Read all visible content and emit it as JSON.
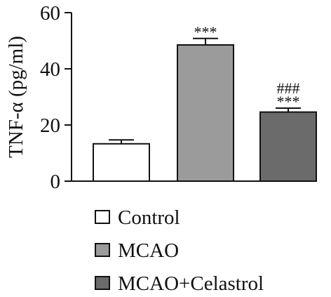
{
  "chart_data": {
    "type": "bar",
    "ylabel": "TNF-α (pg/ml)",
    "ylim": [
      0,
      60
    ],
    "yticks": [
      0,
      20,
      40,
      60
    ],
    "grid": false,
    "legend_position": "bottom",
    "categories": [
      "Control",
      "MCAO",
      "MCAO+Celastrol"
    ],
    "values": [
      13.3,
      48.5,
      24.6
    ],
    "errors": [
      1.4,
      2.3,
      1.4
    ],
    "colors": [
      "#ffffff",
      "#9b9b9b",
      "#6b6b6b"
    ],
    "annotations": [
      {
        "category": "MCAO",
        "lines": [
          "***"
        ]
      },
      {
        "category": "MCAO+Celastrol",
        "lines": [
          "###",
          "***"
        ]
      }
    ],
    "legend": [
      "Control",
      "MCAO",
      "MCAO+Celastrol"
    ]
  }
}
